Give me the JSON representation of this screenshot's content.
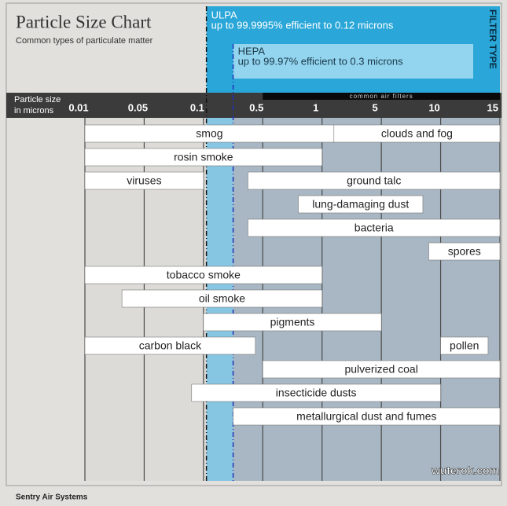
{
  "chart_data": {
    "type": "range",
    "title": "Particle Size Chart",
    "subtitle": "Common types of particulate matter",
    "axis_label": [
      "Particle size",
      "in microns"
    ],
    "filter_type_label": "FILTER TYPE",
    "filters": [
      {
        "name": "ULPA",
        "description": "up to 99.9995% efficient to 0.12 microns",
        "value": 0.12,
        "color": "#2aa7d8"
      },
      {
        "name": "HEPA",
        "description": "up to 99.97% efficient to 0.3 microns",
        "value": 0.3,
        "color": "#93d4ee"
      }
    ],
    "common_filters": {
      "label": "common air filters",
      "start": 0.5,
      "end": 15
    },
    "xlim": [
      0.01,
      15
    ],
    "xticks": [
      0.01,
      0.05,
      0.1,
      0.5,
      1,
      5,
      10,
      15
    ],
    "grid": true,
    "bar_color": "#ffffff",
    "bars": [
      {
        "name": "smog",
        "start": 0.01,
        "end": 1.8
      },
      {
        "name": "clouds and fog",
        "start": 1.8,
        "end": 15
      },
      {
        "name": "rosin smoke",
        "start": 0.01,
        "end": 1
      },
      {
        "name": "viruses",
        "start": 0.01,
        "end": 0.1
      },
      {
        "name": "ground talc",
        "start": 0.4,
        "end": 15
      },
      {
        "name": "lung-damaging dust",
        "start": 0.8,
        "end": 8.5
      },
      {
        "name": "bacteria",
        "start": 0.4,
        "end": 15
      },
      {
        "name": "spores",
        "start": 9,
        "end": 15
      },
      {
        "name": "tobacco smoke",
        "start": 0.01,
        "end": 1
      },
      {
        "name": "oil smoke",
        "start": 0.035,
        "end": 1
      },
      {
        "name": "pigments",
        "start": 0.1,
        "end": 5
      },
      {
        "name": "carbon black",
        "start": 0.01,
        "end": 0.45
      },
      {
        "name": "pollen",
        "start": 10,
        "end": 14
      },
      {
        "name": "pulverized coal",
        "start": 0.5,
        "end": 15
      },
      {
        "name": "insecticide dusts",
        "start": 0.09,
        "end": 10
      },
      {
        "name": "metallurgical dust and fumes",
        "start": 0.3,
        "end": 15
      }
    ],
    "footer": "Sentry Air Systems",
    "watermark": "wuterok.com"
  }
}
